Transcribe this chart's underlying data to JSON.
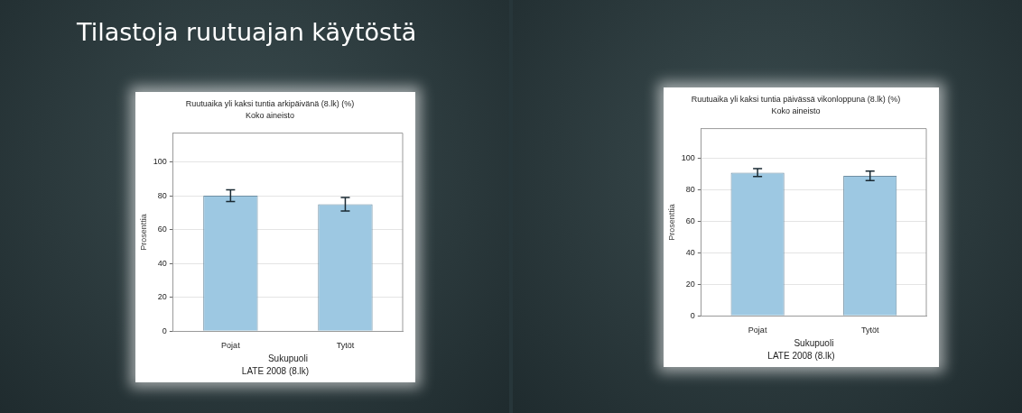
{
  "chart_data": [
    {
      "type": "bar",
      "title": "Ruutuaika yli kaksi tuntia arkipäivänä (8.lk) (%)",
      "subtitle": "Koko aineisto",
      "xlabel": "Sukupuoli",
      "ylabel": "Prosenttia",
      "categories": [
        "Pojat",
        "Tytöt"
      ],
      "values": [
        80,
        75
      ],
      "errors": [
        3.5,
        4
      ],
      "color": "#9dc8e2",
      "ylim": [
        0,
        117
      ],
      "yticks": [
        0,
        20,
        40,
        60,
        80,
        100
      ],
      "grid": "y",
      "legend": false,
      "annotations": [
        "LATE 2008 (8.lk)",
        "Tilastoja ruutuajan käytöstä"
      ]
    },
    {
      "type": "bar",
      "title": "Ruutuaika yli kaksi tuntia päivässä vikonloppuna (8.lk) (%)",
      "subtitle": "Koko aineisto",
      "xlabel": "Sukupuoli",
      "ylabel": "Prosenttia",
      "categories": [
        "Pojat",
        "Tytöt"
      ],
      "values": [
        91,
        89
      ],
      "errors": [
        2.5,
        3
      ],
      "color": "#9dc8e2",
      "ylim": [
        0,
        119
      ],
      "yticks": [
        0,
        20,
        40,
        60,
        80,
        100
      ],
      "grid": "y",
      "legend": false,
      "annotations": [
        "LATE 2008 (8.lk)"
      ]
    }
  ]
}
